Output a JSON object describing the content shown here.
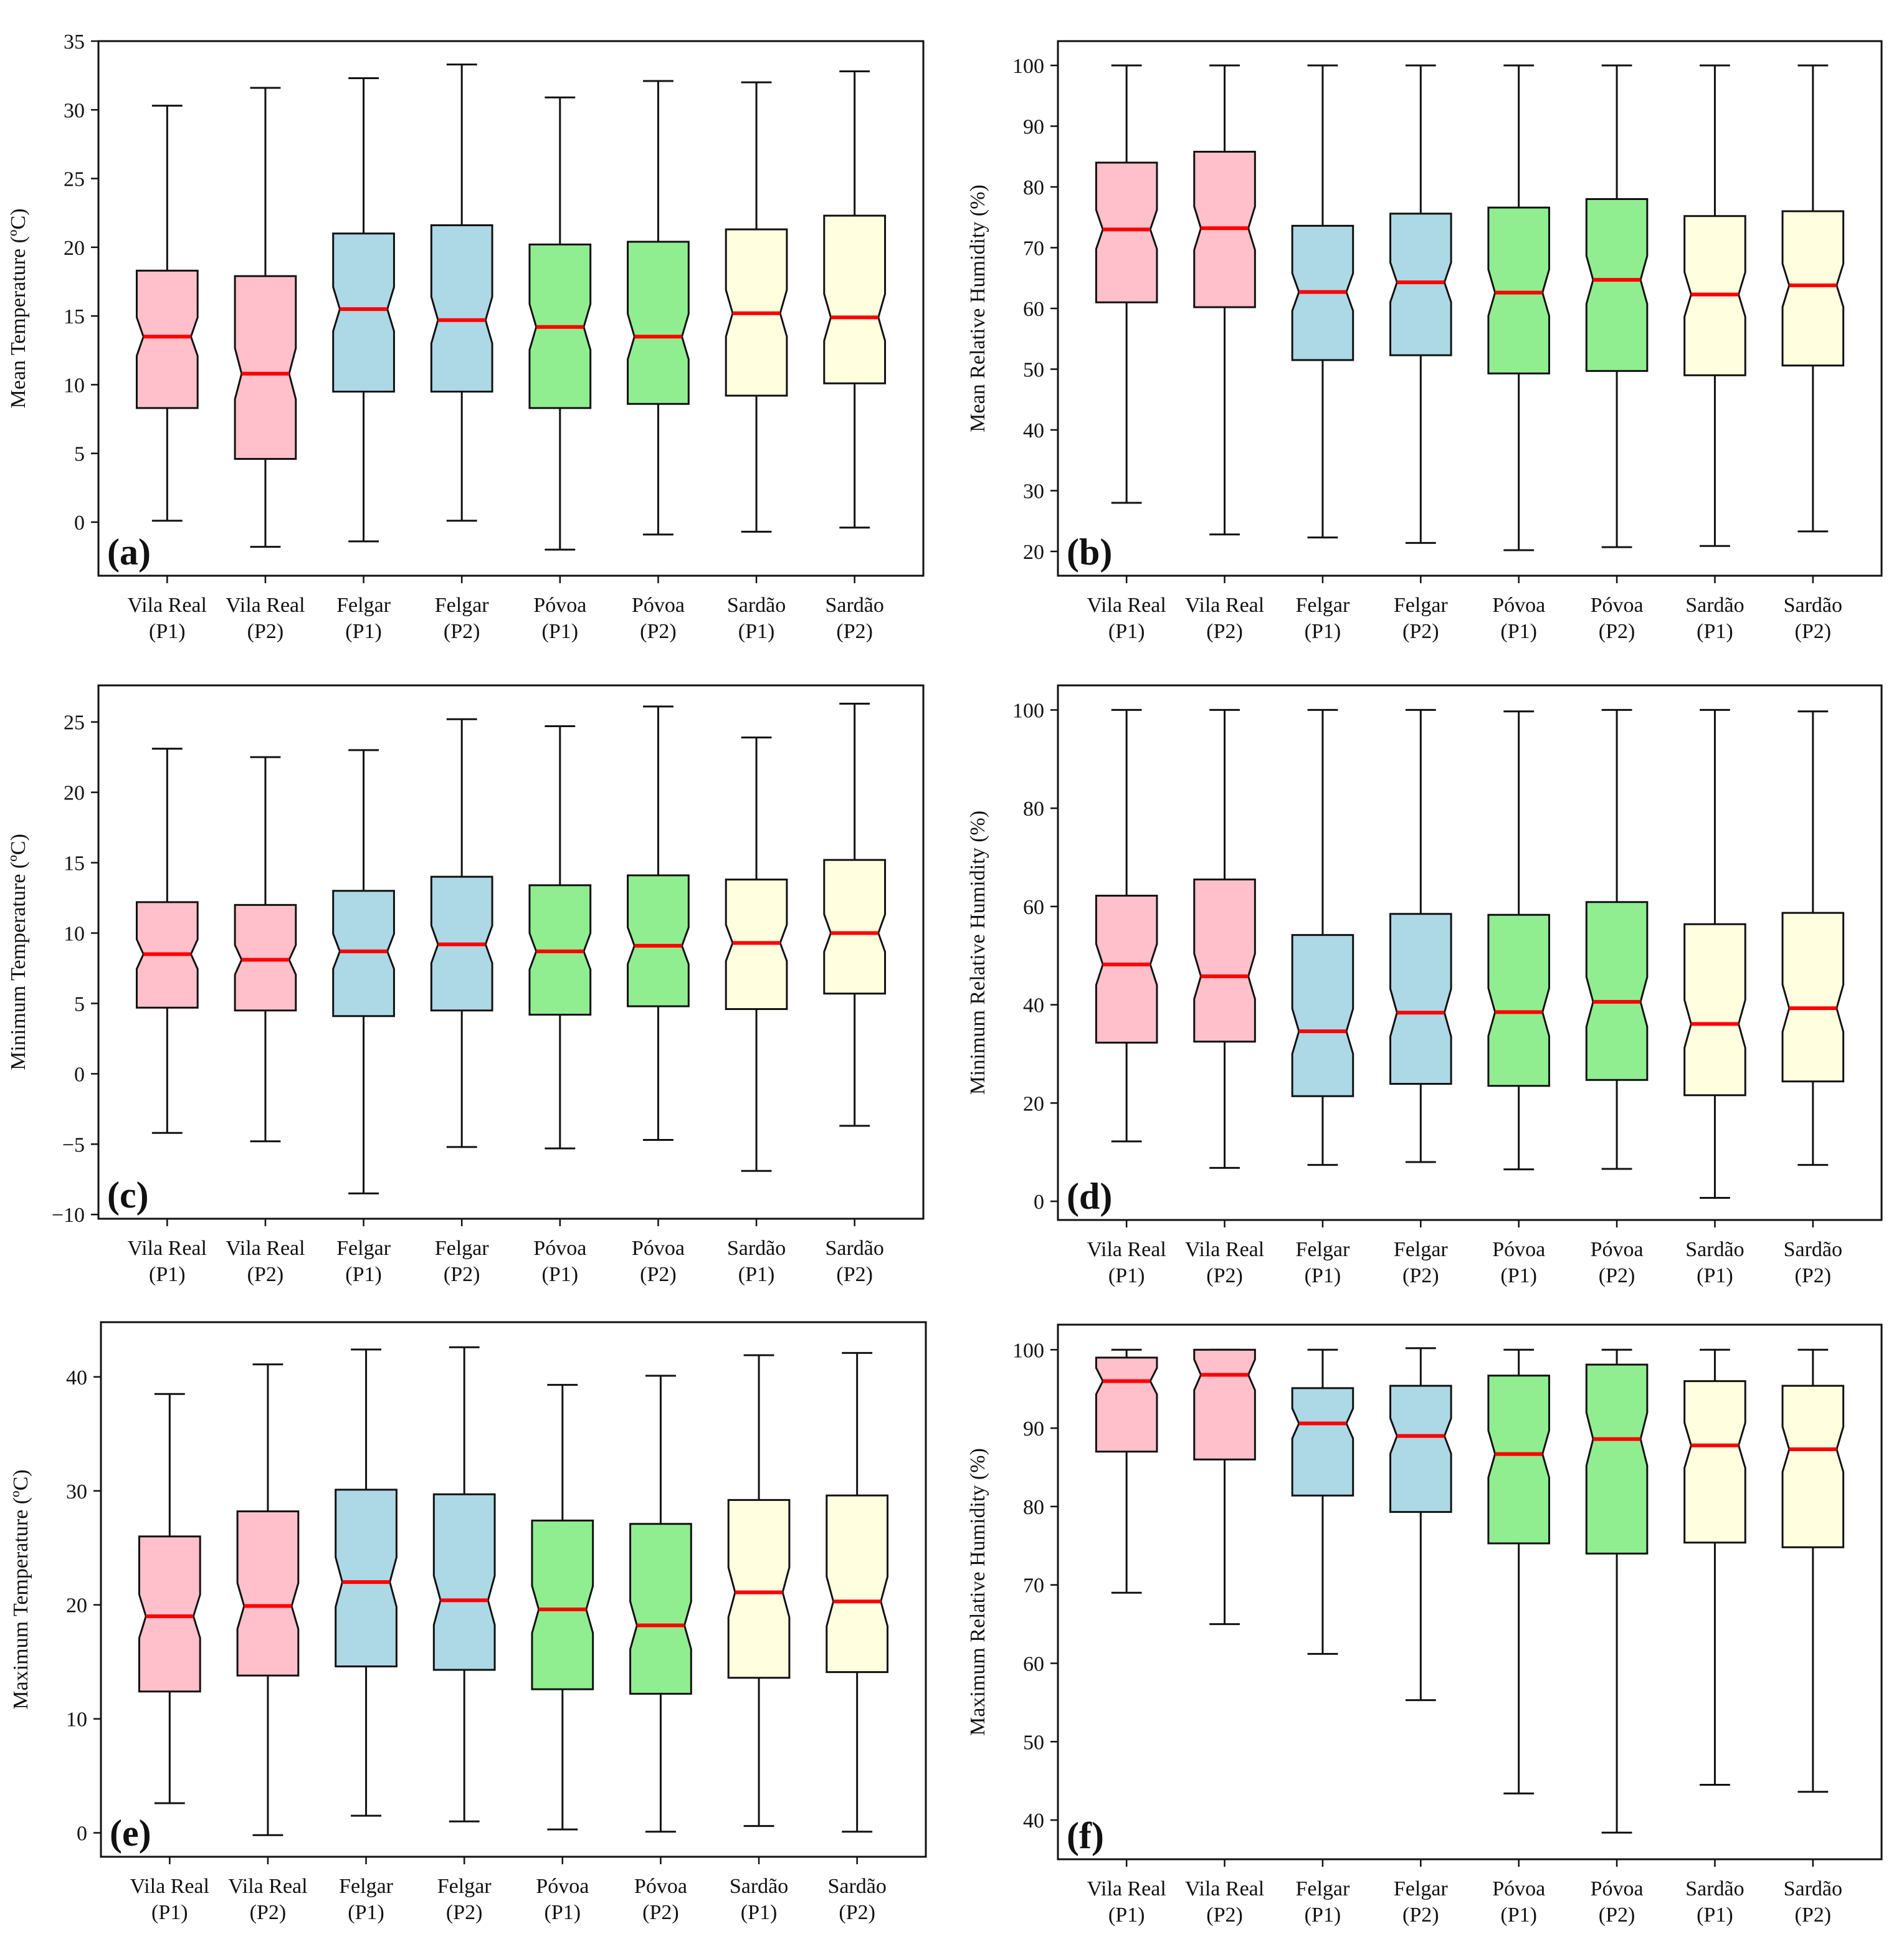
{
  "chart_data": [
    {
      "type": "boxplot",
      "panel_label": "(a)",
      "ylabel": "Mean Temperature (ºC)",
      "ylim": [
        -3.9,
        35
      ],
      "yticks": [
        0,
        5,
        10,
        15,
        20,
        25,
        30,
        35
      ],
      "categories": [
        "Vila Real (P1)",
        "Vila Real (P2)",
        "Felgar (P1)",
        "Felgar (P2)",
        "Póvoa (P1)",
        "Póvoa (P2)",
        "Sardão (P1)",
        "Sardão (P2)"
      ],
      "colors": [
        "#ffc0cb",
        "#ffc0cb",
        "#add8e6",
        "#add8e6",
        "#90ee90",
        "#90ee90",
        "#ffffe0",
        "#ffffe0"
      ],
      "boxes": [
        {
          "whislo": 0.1,
          "q1": 8.3,
          "med": 13.5,
          "q3": 18.3,
          "whishi": 30.3
        },
        {
          "whislo": -1.8,
          "q1": 4.6,
          "med": 10.8,
          "q3": 17.9,
          "whishi": 31.6
        },
        {
          "whislo": -1.4,
          "q1": 9.5,
          "med": 15.5,
          "q3": 21.0,
          "whishi": 32.3
        },
        {
          "whislo": 0.1,
          "q1": 9.5,
          "med": 14.7,
          "q3": 21.6,
          "whishi": 33.3
        },
        {
          "whislo": -2.0,
          "q1": 8.3,
          "med": 14.2,
          "q3": 20.2,
          "whishi": 30.9
        },
        {
          "whislo": -0.9,
          "q1": 8.6,
          "med": 13.5,
          "q3": 20.4,
          "whishi": 32.1
        },
        {
          "whislo": -0.7,
          "q1": 9.2,
          "med": 15.2,
          "q3": 21.3,
          "whishi": 32.0
        },
        {
          "whislo": -0.4,
          "q1": 10.1,
          "med": 14.9,
          "q3": 22.3,
          "whishi": 32.8
        }
      ]
    },
    {
      "type": "boxplot",
      "panel_label": "(b)",
      "ylabel": "Mean Relative Humidity (%)",
      "ylim": [
        16,
        104
      ],
      "yticks": [
        20,
        30,
        40,
        50,
        60,
        70,
        80,
        90,
        100
      ],
      "categories": [
        "Vila Real (P1)",
        "Vila Real (P2)",
        "Felgar (P1)",
        "Felgar (P2)",
        "Póvoa (P1)",
        "Póvoa (P2)",
        "Sardão (P1)",
        "Sardão (P2)"
      ],
      "colors": [
        "#ffc0cb",
        "#ffc0cb",
        "#add8e6",
        "#add8e6",
        "#90ee90",
        "#90ee90",
        "#ffffe0",
        "#ffffe0"
      ],
      "boxes": [
        {
          "whislo": 28.0,
          "q1": 61.0,
          "med": 73.0,
          "q3": 84.0,
          "whishi": 100.0
        },
        {
          "whislo": 22.8,
          "q1": 60.2,
          "med": 73.2,
          "q3": 85.8,
          "whishi": 100.0
        },
        {
          "whislo": 22.3,
          "q1": 51.5,
          "med": 62.7,
          "q3": 73.6,
          "whishi": 100.0
        },
        {
          "whislo": 21.4,
          "q1": 52.3,
          "med": 64.3,
          "q3": 75.6,
          "whishi": 100.0
        },
        {
          "whislo": 20.2,
          "q1": 49.3,
          "med": 62.6,
          "q3": 76.6,
          "whishi": 100.0
        },
        {
          "whislo": 20.7,
          "q1": 49.7,
          "med": 64.7,
          "q3": 78.0,
          "whishi": 100.0
        },
        {
          "whislo": 20.9,
          "q1": 49.0,
          "med": 62.3,
          "q3": 75.2,
          "whishi": 100.0
        },
        {
          "whislo": 23.3,
          "q1": 50.6,
          "med": 63.8,
          "q3": 76.0,
          "whishi": 100.0
        }
      ]
    },
    {
      "type": "boxplot",
      "panel_label": "(c)",
      "ylabel": "Minimum Temperature (ºC)",
      "ylim": [
        -10.3,
        27.6
      ],
      "yticks": [
        -10,
        -5,
        0,
        5,
        10,
        15,
        20,
        25
      ],
      "categories": [
        "Vila Real (P1)",
        "Vila Real (P2)",
        "Felgar (P1)",
        "Felgar (P2)",
        "Póvoa (P1)",
        "Póvoa (P2)",
        "Sardão (P1)",
        "Sardão (P2)"
      ],
      "colors": [
        "#ffc0cb",
        "#ffc0cb",
        "#add8e6",
        "#add8e6",
        "#90ee90",
        "#90ee90",
        "#ffffe0",
        "#ffffe0"
      ],
      "boxes": [
        {
          "whislo": -4.2,
          "q1": 4.7,
          "med": 8.5,
          "q3": 12.2,
          "whishi": 23.1
        },
        {
          "whislo": -4.8,
          "q1": 4.5,
          "med": 8.1,
          "q3": 12.0,
          "whishi": 22.5
        },
        {
          "whislo": -8.5,
          "q1": 4.1,
          "med": 8.7,
          "q3": 13.0,
          "whishi": 23.0
        },
        {
          "whislo": -5.2,
          "q1": 4.5,
          "med": 9.2,
          "q3": 14.0,
          "whishi": 25.2
        },
        {
          "whislo": -5.3,
          "q1": 4.2,
          "med": 8.7,
          "q3": 13.4,
          "whishi": 24.7
        },
        {
          "whislo": -4.7,
          "q1": 4.8,
          "med": 9.1,
          "q3": 14.1,
          "whishi": 26.1
        },
        {
          "whislo": -6.9,
          "q1": 4.6,
          "med": 9.3,
          "q3": 13.8,
          "whishi": 23.9
        },
        {
          "whislo": -3.7,
          "q1": 5.7,
          "med": 10.0,
          "q3": 15.2,
          "whishi": 26.3
        }
      ]
    },
    {
      "type": "boxplot",
      "panel_label": "(d)",
      "ylabel": "Minimum Relative Humidity (%)",
      "ylim": [
        -3.8,
        105
      ],
      "yticks": [
        0,
        20,
        40,
        60,
        80,
        100
      ],
      "categories": [
        "Vila Real (P1)",
        "Vila Real (P2)",
        "Felgar (P1)",
        "Felgar (P2)",
        "Póvoa (P1)",
        "Póvoa (P2)",
        "Sardão (P1)",
        "Sardão (P2)"
      ],
      "colors": [
        "#ffc0cb",
        "#ffc0cb",
        "#add8e6",
        "#add8e6",
        "#90ee90",
        "#90ee90",
        "#ffffe0",
        "#ffffe0"
      ],
      "boxes": [
        {
          "whislo": 12.2,
          "q1": 32.3,
          "med": 48.2,
          "q3": 62.2,
          "whishi": 100.0
        },
        {
          "whislo": 6.8,
          "q1": 32.5,
          "med": 45.8,
          "q3": 65.5,
          "whishi": 100.0
        },
        {
          "whislo": 7.4,
          "q1": 21.4,
          "med": 34.6,
          "q3": 54.2,
          "whishi": 100.0
        },
        {
          "whislo": 8.0,
          "q1": 23.9,
          "med": 38.4,
          "q3": 58.5,
          "whishi": 100.0
        },
        {
          "whislo": 6.5,
          "q1": 23.5,
          "med": 38.5,
          "q3": 58.3,
          "whishi": 99.7
        },
        {
          "whislo": 6.6,
          "q1": 24.7,
          "med": 40.6,
          "q3": 60.9,
          "whishi": 100.0
        },
        {
          "whislo": 0.7,
          "q1": 21.6,
          "med": 36.1,
          "q3": 56.4,
          "whishi": 100.0
        },
        {
          "whislo": 7.4,
          "q1": 24.4,
          "med": 39.3,
          "q3": 58.7,
          "whishi": 99.7
        }
      ]
    },
    {
      "type": "boxplot",
      "panel_label": "(e)",
      "ylabel": "Maximum Temperature (ºC)",
      "ylim": [
        -2.1,
        44.8
      ],
      "yticks": [
        0,
        10,
        20,
        30,
        40
      ],
      "categories": [
        "Vila Real (P1)",
        "Vila Real (P2)",
        "Felgar (P1)",
        "Felgar (P2)",
        "Póvoa (P1)",
        "Póvoa (P2)",
        "Sardão (P1)",
        "Sardão (P2)"
      ],
      "colors": [
        "#ffc0cb",
        "#ffc0cb",
        "#add8e6",
        "#add8e6",
        "#90ee90",
        "#90ee90",
        "#ffffe0",
        "#ffffe0"
      ],
      "boxes": [
        {
          "whislo": 2.6,
          "q1": 12.4,
          "med": 19.0,
          "q3": 26.0,
          "whishi": 38.5
        },
        {
          "whislo": -0.2,
          "q1": 13.8,
          "med": 19.9,
          "q3": 28.2,
          "whishi": 41.1
        },
        {
          "whislo": 1.5,
          "q1": 14.6,
          "med": 22.0,
          "q3": 30.1,
          "whishi": 42.4
        },
        {
          "whislo": 1.0,
          "q1": 14.3,
          "med": 20.4,
          "q3": 29.7,
          "whishi": 42.6
        },
        {
          "whislo": 0.3,
          "q1": 12.6,
          "med": 19.6,
          "q3": 27.4,
          "whishi": 39.3
        },
        {
          "whislo": 0.1,
          "q1": 12.2,
          "med": 18.2,
          "q3": 27.1,
          "whishi": 40.1
        },
        {
          "whislo": 0.6,
          "q1": 13.6,
          "med": 21.1,
          "q3": 29.2,
          "whishi": 41.9
        },
        {
          "whislo": 0.1,
          "q1": 14.1,
          "med": 20.3,
          "q3": 29.6,
          "whishi": 42.1
        }
      ]
    },
    {
      "type": "boxplot",
      "panel_label": "(f)",
      "ylabel": "Maximum Relative Humidity (%)",
      "ylim": [
        35,
        103.2
      ],
      "yticks": [
        40,
        50,
        60,
        70,
        80,
        90,
        100
      ],
      "categories": [
        "Vila Real (P1)",
        "Vila Real (P2)",
        "Felgar (P1)",
        "Felgar (P2)",
        "Póvoa (P1)",
        "Póvoa (P2)",
        "Sardão (P1)",
        "Sardão (P2)"
      ],
      "colors": [
        "#ffc0cb",
        "#ffc0cb",
        "#add8e6",
        "#add8e6",
        "#90ee90",
        "#90ee90",
        "#ffffe0",
        "#ffffe0"
      ],
      "boxes": [
        {
          "whislo": 69.0,
          "q1": 87.0,
          "med": 96.0,
          "q3": 99.0,
          "whishi": 100.0
        },
        {
          "whislo": 65.0,
          "q1": 86.0,
          "med": 96.8,
          "q3": 100.0,
          "whishi": 100.0
        },
        {
          "whislo": 61.2,
          "q1": 81.4,
          "med": 90.6,
          "q3": 95.1,
          "whishi": 100.0
        },
        {
          "whislo": 55.3,
          "q1": 79.3,
          "med": 89.0,
          "q3": 95.4,
          "whishi": 100.2
        },
        {
          "whislo": 43.4,
          "q1": 75.3,
          "med": 86.7,
          "q3": 96.7,
          "whishi": 100.0
        },
        {
          "whislo": 38.4,
          "q1": 74.0,
          "med": 88.6,
          "q3": 98.1,
          "whishi": 100.0
        },
        {
          "whislo": 44.5,
          "q1": 75.4,
          "med": 87.8,
          "q3": 96.0,
          "whishi": 100.0
        },
        {
          "whislo": 43.6,
          "q1": 74.8,
          "med": 87.3,
          "q3": 95.4,
          "whishi": 100.0
        }
      ]
    }
  ]
}
